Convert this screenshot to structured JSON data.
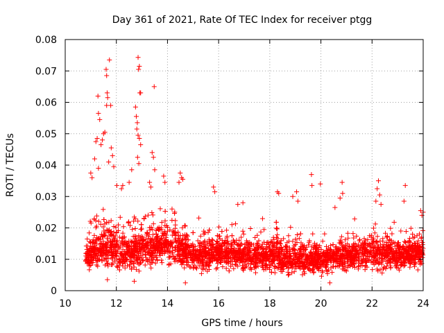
{
  "chart_data": {
    "type": "scatter",
    "title": "Day 361 of 2021, Rate Of TEC Index for receiver ptgg",
    "xlabel": "GPS time / hours",
    "ylabel": "ROTI / TECUs",
    "xlim": [
      10,
      24
    ],
    "ylim": [
      0,
      0.08
    ],
    "x_ticks": [
      10,
      12,
      14,
      16,
      18,
      20,
      22,
      24
    ],
    "x_tick_labels": [
      "10",
      "12",
      "14",
      "16",
      "18",
      "20",
      "22",
      "24"
    ],
    "y_ticks": [
      0,
      0.01,
      0.02,
      0.03,
      0.04,
      0.05,
      0.06,
      0.07,
      0.08
    ],
    "y_tick_labels": [
      "0",
      "0.01",
      "0.02",
      "0.03",
      "0.04",
      "0.05",
      "0.06",
      "0.07",
      "0.08"
    ],
    "grid": true,
    "marker": "+",
    "color": "#ff0000",
    "data_range_x": [
      10.8,
      24.0
    ],
    "series": [
      {
        "name": "ROTI",
        "points": [
          [
            11.73,
            0.0735
          ],
          [
            11.6,
            0.0705
          ],
          [
            11.62,
            0.0685
          ],
          [
            11.64,
            0.063
          ],
          [
            11.66,
            0.0615
          ],
          [
            11.62,
            0.059
          ],
          [
            11.78,
            0.059
          ],
          [
            11.28,
            0.062
          ],
          [
            11.3,
            0.0565
          ],
          [
            11.35,
            0.0545
          ],
          [
            11.5,
            0.05
          ],
          [
            11.55,
            0.0505
          ],
          [
            11.45,
            0.048
          ],
          [
            11.25,
            0.0485
          ],
          [
            11.2,
            0.0475
          ],
          [
            11.4,
            0.0465
          ],
          [
            11.8,
            0.0455
          ],
          [
            11.85,
            0.043
          ],
          [
            11.7,
            0.041
          ],
          [
            11.15,
            0.042
          ],
          [
            11.0,
            0.0375
          ],
          [
            11.05,
            0.036
          ],
          [
            11.3,
            0.039
          ],
          [
            11.9,
            0.0395
          ],
          [
            12.02,
            0.0335
          ],
          [
            12.2,
            0.0325
          ],
          [
            12.25,
            0.0335
          ],
          [
            12.85,
            0.0743
          ],
          [
            12.9,
            0.0715
          ],
          [
            12.87,
            0.0705
          ],
          [
            12.95,
            0.063
          ],
          [
            12.92,
            0.063
          ],
          [
            13.48,
            0.065
          ],
          [
            12.75,
            0.0585
          ],
          [
            12.78,
            0.0555
          ],
          [
            12.82,
            0.0535
          ],
          [
            12.8,
            0.0515
          ],
          [
            12.85,
            0.0495
          ],
          [
            12.9,
            0.0485
          ],
          [
            12.95,
            0.0465
          ],
          [
            12.83,
            0.0425
          ],
          [
            12.88,
            0.0405
          ],
          [
            13.4,
            0.044
          ],
          [
            13.45,
            0.0425
          ],
          [
            13.5,
            0.0385
          ],
          [
            13.3,
            0.0345
          ],
          [
            13.35,
            0.033
          ],
          [
            12.6,
            0.0385
          ],
          [
            12.5,
            0.0345
          ],
          [
            14.5,
            0.0375
          ],
          [
            14.55,
            0.036
          ],
          [
            14.6,
            0.0355
          ],
          [
            14.45,
            0.0345
          ],
          [
            13.85,
            0.0365
          ],
          [
            13.9,
            0.0345
          ],
          [
            15.8,
            0.033
          ],
          [
            15.85,
            0.0315
          ],
          [
            16.95,
            0.028
          ],
          [
            16.75,
            0.0275
          ],
          [
            18.3,
            0.0315
          ],
          [
            18.35,
            0.031
          ],
          [
            18.9,
            0.03
          ],
          [
            19.05,
            0.0315
          ],
          [
            19.1,
            0.0285
          ],
          [
            19.63,
            0.037
          ],
          [
            19.65,
            0.0335
          ],
          [
            19.98,
            0.034
          ],
          [
            20.83,
            0.0345
          ],
          [
            20.85,
            0.031
          ],
          [
            20.75,
            0.0295
          ],
          [
            20.55,
            0.0265
          ],
          [
            22.25,
            0.035
          ],
          [
            22.2,
            0.0325
          ],
          [
            22.3,
            0.0305
          ],
          [
            22.15,
            0.0285
          ],
          [
            22.35,
            0.0275
          ],
          [
            23.3,
            0.0335
          ],
          [
            23.25,
            0.0285
          ],
          [
            23.9,
            0.0255
          ],
          [
            23.95,
            0.024
          ],
          [
            24.0,
            0.025
          ],
          [
            11.65,
            0.0035
          ],
          [
            12.7,
            0.003
          ],
          [
            14.7,
            0.0025
          ],
          [
            20.35,
            0.0025
          ]
        ]
      }
    ],
    "bulk_density_profile": [
      {
        "x": 10.8,
        "center": 0.011,
        "spread": 0.006
      },
      {
        "x": 11.5,
        "center": 0.014,
        "spread": 0.009
      },
      {
        "x": 12.4,
        "center": 0.012,
        "spread": 0.008
      },
      {
        "x": 13.0,
        "center": 0.013,
        "spread": 0.009
      },
      {
        "x": 13.6,
        "center": 0.015,
        "spread": 0.009
      },
      {
        "x": 14.2,
        "center": 0.014,
        "spread": 0.008
      },
      {
        "x": 15.0,
        "center": 0.011,
        "spread": 0.006
      },
      {
        "x": 16.0,
        "center": 0.012,
        "spread": 0.007
      },
      {
        "x": 17.0,
        "center": 0.011,
        "spread": 0.006
      },
      {
        "x": 18.0,
        "center": 0.011,
        "spread": 0.007
      },
      {
        "x": 19.0,
        "center": 0.01,
        "spread": 0.006
      },
      {
        "x": 20.0,
        "center": 0.01,
        "spread": 0.006
      },
      {
        "x": 21.0,
        "center": 0.011,
        "spread": 0.006
      },
      {
        "x": 22.0,
        "center": 0.012,
        "spread": 0.007
      },
      {
        "x": 23.0,
        "center": 0.011,
        "spread": 0.006
      },
      {
        "x": 24.0,
        "center": 0.012,
        "spread": 0.007
      }
    ]
  }
}
